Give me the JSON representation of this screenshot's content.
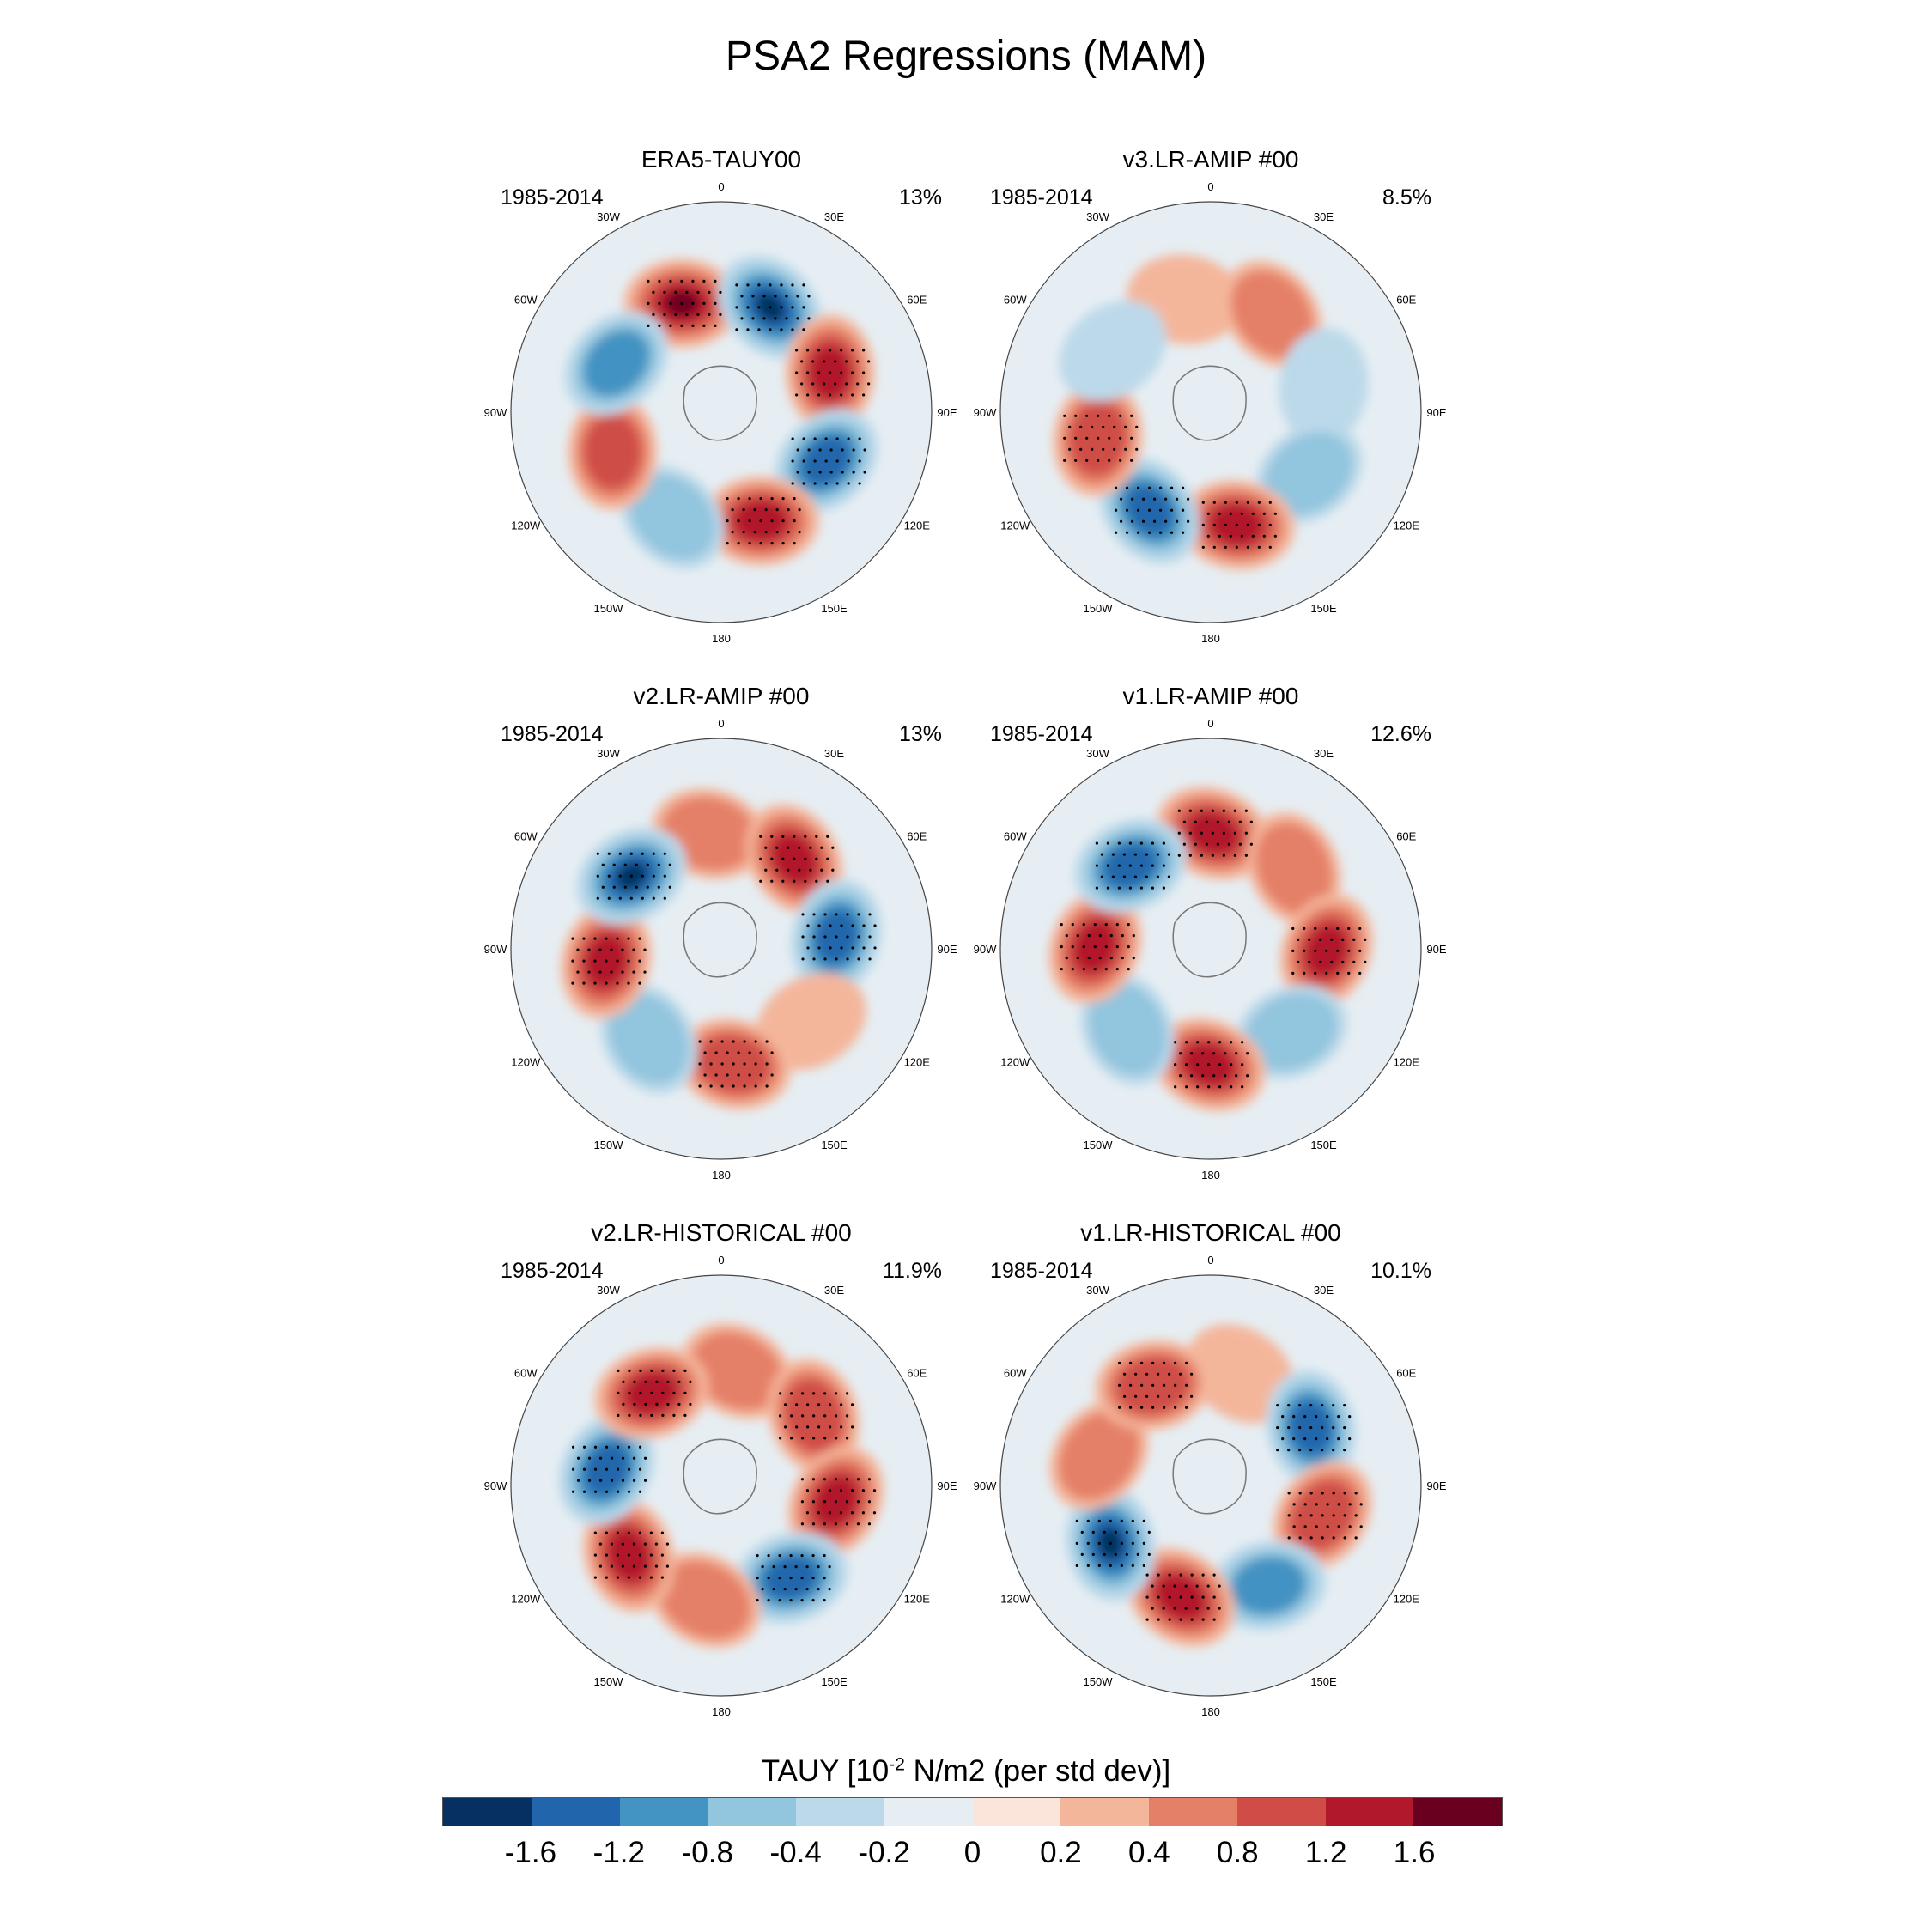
{
  "title": "PSA2 Regressions (MAM)",
  "panels": [
    {
      "title": "ERA5-TAUY00",
      "years": "1985-2014",
      "percent": "13%",
      "pattern": [
        1.8,
        -1.6,
        1.5,
        -1.3,
        1.2,
        -0.6,
        0.8,
        -0.9
      ]
    },
    {
      "title": "v3.LR-AMIP  #00",
      "years": "1985-2014",
      "percent": "8.5%",
      "pattern": [
        0.3,
        0.4,
        -0.3,
        -0.5,
        1.2,
        -1.5,
        1.0,
        -0.3
      ]
    },
    {
      "title": "v2.LR-AMIP  #00",
      "years": "1985-2014",
      "percent": "13%",
      "pattern": [
        0.5,
        1.4,
        -1.2,
        0.2,
        1.0,
        -0.6,
        1.4,
        -1.6
      ]
    },
    {
      "title": "v1.LR-AMIP  #00",
      "years": "1985-2014",
      "percent": "12.6%",
      "pattern": [
        1.5,
        0.6,
        1.2,
        -0.6,
        1.2,
        -0.7,
        1.2,
        -1.4
      ]
    },
    {
      "title": "v2.LR-HISTORICAL  #00",
      "years": "1985-2014",
      "percent": "11.9%",
      "pattern": [
        0.5,
        1.0,
        1.2,
        -1.2,
        0.6,
        1.3,
        -1.5,
        1.4
      ]
    },
    {
      "title": "v1.LR-HISTORICAL  #00",
      "years": "1985-2014",
      "percent": "10.1%",
      "pattern": [
        0.3,
        -1.2,
        1.0,
        -0.8,
        1.2,
        -1.6,
        0.6,
        1.0
      ]
    }
  ],
  "lon_labels": [
    "0",
    "30E",
    "60E",
    "90E",
    "120E",
    "150E",
    "180",
    "150W",
    "120W",
    "90W",
    "60W",
    "30W"
  ],
  "colorbar": {
    "title_prefix": "TAUY [10",
    "title_exp": "-2",
    "title_suffix": " N/m2 (per std dev)]",
    "labels": [
      "-1.6",
      "-1.2",
      "-0.8",
      "-0.4",
      "-0.2",
      "0",
      "0.2",
      "0.4",
      "0.8",
      "1.2",
      "1.6"
    ],
    "levels": [
      -1.6,
      -1.2,
      -0.8,
      -0.4,
      -0.2,
      0,
      0.2,
      0.4,
      0.8,
      1.2,
      1.6
    ],
    "colors": [
      "#053061",
      "#2166ac",
      "#4393c3",
      "#92c5de",
      "#bcd9ea",
      "#e6eef3",
      "#fbe5da",
      "#f4b69b",
      "#e58068",
      "#cf4d46",
      "#b2182b",
      "#6a0020"
    ]
  }
}
